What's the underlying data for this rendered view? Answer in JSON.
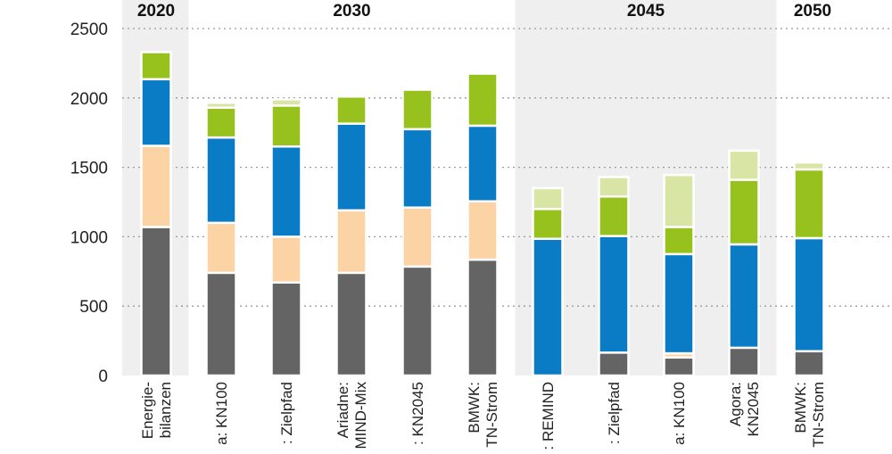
{
  "chart_data": {
    "type": "bar",
    "stacked": true,
    "ylim": [
      0,
      2500
    ],
    "y_ticks": [
      0,
      500,
      1000,
      1500,
      2000,
      2500
    ],
    "grid": "horizontal-dotted",
    "colors": [
      "#646464",
      "#fbd3a4",
      "#0a7cc6",
      "#97c21d",
      "#d8e5a4"
    ],
    "categories": [
      [
        "Energie-",
        "bilanzen"
      ],
      [
        "a: KN100"
      ],
      [
        ": Zielpfad"
      ],
      [
        "Ariadne:",
        "MIND-Mix"
      ],
      [
        ": KN2045"
      ],
      [
        "BMWK:",
        "TN-Strom"
      ],
      [
        ": REMIND"
      ],
      [
        ": Zielpfad"
      ],
      [
        "a: KN100"
      ],
      [
        "Agora:",
        "KN2045"
      ],
      [
        "BMWK:",
        "TN-Strom"
      ]
    ],
    "periods": [
      {
        "label": "2020",
        "start": 0,
        "end": 0,
        "shaded": true
      },
      {
        "label": "2030",
        "start": 1,
        "end": 5,
        "shaded": false
      },
      {
        "label": "2045",
        "start": 6,
        "end": 9,
        "shaded": true
      },
      {
        "label": "2050",
        "start": 10,
        "end": 10,
        "shaded": false
      }
    ],
    "series": [
      {
        "values": [
          1070,
          740,
          670,
          740,
          785,
          835,
          0,
          165,
          130,
          200,
          175
        ]
      },
      {
        "values": [
          585,
          360,
          330,
          450,
          425,
          420,
          0,
          0,
          30,
          0,
          0
        ]
      },
      {
        "values": [
          480,
          615,
          650,
          625,
          565,
          545,
          985,
          840,
          715,
          745,
          815
        ]
      },
      {
        "values": [
          195,
          215,
          295,
          195,
          285,
          375,
          215,
          285,
          195,
          465,
          495
        ]
      },
      {
        "values": [
          0,
          35,
          45,
          0,
          15,
          0,
          150,
          140,
          375,
          210,
          50
        ]
      }
    ]
  }
}
